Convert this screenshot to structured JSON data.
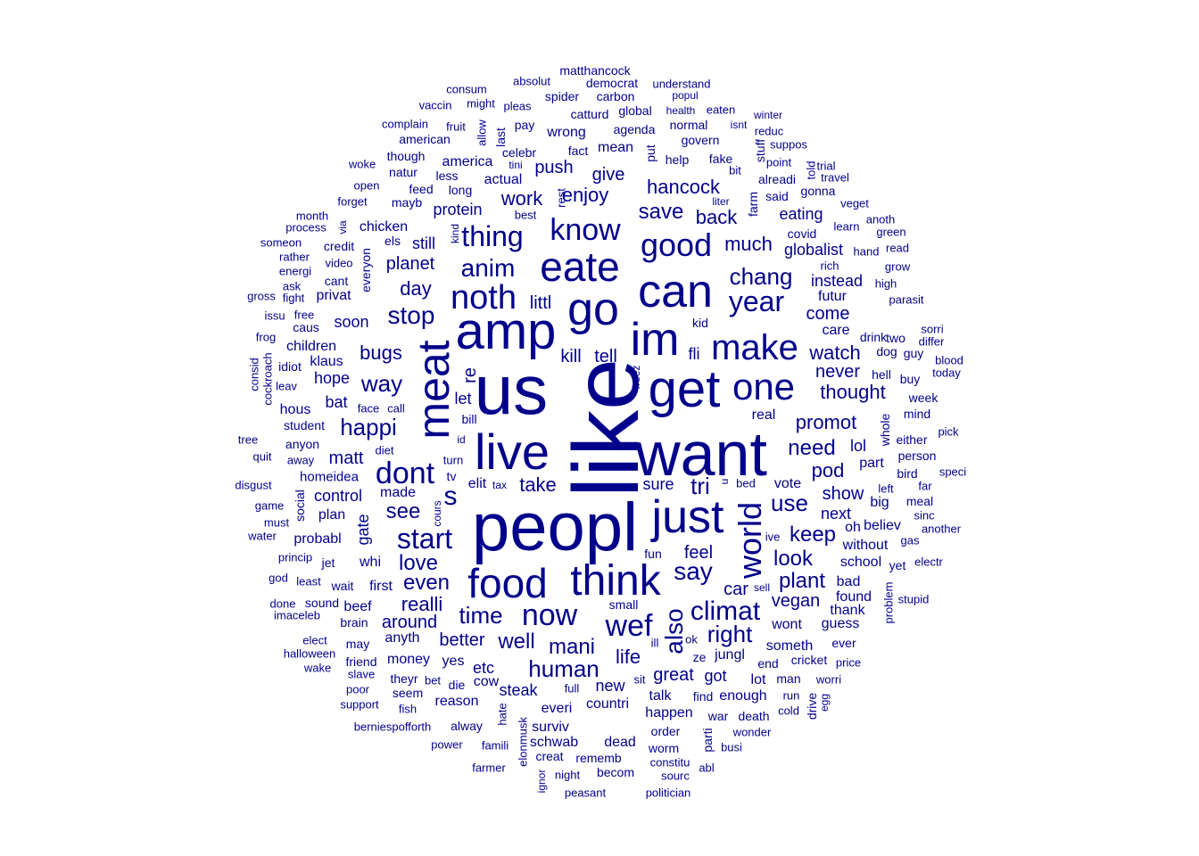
{
  "colors": {
    "text": "#00008B",
    "background": "#FFFFFF"
  },
  "words": [
    "like",
    "us",
    "peopl",
    "want",
    "amp",
    "live",
    "get",
    "meat",
    "im",
    "just",
    "go",
    "can",
    "eate",
    "food",
    "think",
    "one",
    "make",
    "good",
    "know",
    "noth",
    "now",
    "dont",
    "wef",
    "world",
    "thing",
    "climat",
    "start",
    "also",
    "year",
    "say",
    "anim",
    "chang",
    "happi",
    "human",
    "tri",
    "s",
    "stop",
    "time",
    "right",
    "way",
    "use",
    "hancock",
    "save",
    "even",
    "mani",
    "realli",
    "see",
    "well",
    "love",
    "plant",
    "need",
    "keep",
    "much",
    "take",
    "better",
    "life",
    "back",
    "promot",
    "look",
    "work",
    "enjoy",
    "planet",
    "watch",
    "pod",
    "around",
    "kill",
    "tell",
    "bugs",
    "littl",
    "day",
    "come",
    "thought",
    "car",
    "feel",
    "great",
    "vegan",
    "give",
    "push",
    "soon",
    "never",
    "fli",
    "re",
    "sure",
    "matt",
    "protein",
    "instead",
    "globalist",
    "eating",
    "chicken",
    "control",
    "show",
    "vote",
    "next",
    "lol",
    "part",
    "still",
    "new",
    "hope",
    "etc",
    "everi",
    "countri",
    "steak",
    "cow",
    "talk",
    "reason",
    "got",
    "yes",
    "money",
    "anyth",
    "made",
    "let",
    "bat",
    "kid",
    "real",
    "plan",
    "gate",
    "probabl",
    "whi",
    "first",
    "sound",
    "beef",
    "brain",
    "enough",
    "find",
    "happen",
    "order",
    "surviv",
    "schwab",
    "dead",
    "rememb",
    "becom",
    "creat",
    "wont",
    "someth",
    "guess",
    "thank",
    "found",
    "bad",
    "school",
    "oh",
    "big",
    "without",
    "believ",
    "elit",
    "jungl",
    "ze",
    "end",
    "cricket",
    "lot",
    "man",
    "ever",
    "america",
    "actual",
    "less",
    "long",
    "feed",
    "mayb",
    "natur",
    "though",
    "american",
    "celebr",
    "fact",
    "mean",
    "wrong",
    "agenda",
    "govern",
    "help",
    "fake",
    "global",
    "normal",
    "health",
    "carbon",
    "spider",
    "democrat",
    "matthancock",
    "absolut",
    "popul",
    "understand",
    "eaten",
    "consum",
    "vaccin",
    "might",
    "pleas",
    "fruit",
    "allow",
    "last",
    "pay",
    "catturd",
    "put",
    "tini",
    "best",
    "rest",
    "isnt",
    "winter",
    "reduc",
    "suppos",
    "point",
    "trial",
    "travel",
    "told",
    "stuff",
    "alreadi",
    "farm",
    "said",
    "gonna",
    "veget",
    "anoth",
    "learn",
    "green",
    "covid",
    "read",
    "hand",
    "grow",
    "rich",
    "high",
    "futur",
    "parasit",
    "drink",
    "care",
    "two",
    "sorri",
    "differ",
    "dog",
    "guy",
    "blood",
    "today",
    "hell",
    "buy",
    "week",
    "mind",
    "either",
    "whole",
    "bird",
    "person",
    "pick",
    "speci",
    "far",
    "left",
    "meal",
    "sinc",
    "another",
    "gas",
    "yet",
    "electr",
    "stupid",
    "problem",
    "price",
    "worri",
    "drive",
    "egg",
    "cold",
    "run",
    "war",
    "death",
    "wonder",
    "busi",
    "abl",
    "constitu",
    "sourc",
    "politician",
    "worm",
    "parti",
    "peasant",
    "night",
    "ignor",
    "elonmusk",
    "farmer",
    "famili",
    "power",
    "alway",
    "hate",
    "berniespofforth",
    "fish",
    "seem",
    "theyr",
    "bet",
    "die",
    "full",
    "sit",
    "small",
    "ill",
    "ok",
    "fun",
    "ive",
    "sell",
    "wake",
    "slave",
    "halloween",
    "elect",
    "may",
    "friend",
    "poor",
    "support",
    "imaceleb",
    "done",
    "god",
    "least",
    "wait",
    "jet",
    "princip",
    "must",
    "game",
    "water",
    "disgust",
    "quit",
    "tree",
    "away",
    "anyon",
    "student",
    "hous",
    "face",
    "call",
    "diet",
    "homeidea",
    "cours",
    "tv",
    "turn",
    "id",
    "bill",
    "tax",
    "bed",
    "u",
    "freez",
    "social",
    "leav",
    "idiot",
    "klaus",
    "caus",
    "children",
    "privat",
    "cant",
    "video",
    "credit",
    "everyon",
    "els",
    "via",
    "kind",
    "process",
    "month",
    "forget",
    "open",
    "woke",
    "complain",
    "someon",
    "rather",
    "energi",
    "ask",
    "fight",
    "gross",
    "free",
    "issu",
    "frog",
    "consid",
    "cockroach",
    "liter",
    "bit"
  ]
}
